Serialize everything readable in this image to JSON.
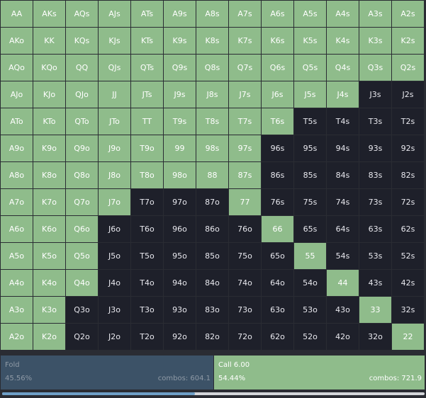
{
  "colors": {
    "call": "#8fbc8b",
    "fold": "#1e202a",
    "fold_summary": "#3c5267",
    "progress": "#6e9fc7"
  },
  "grid": {
    "rows": [
      [
        {
          "hand": "AA",
          "action": "call"
        },
        {
          "hand": "AKs",
          "action": "call"
        },
        {
          "hand": "AQs",
          "action": "call"
        },
        {
          "hand": "AJs",
          "action": "call"
        },
        {
          "hand": "ATs",
          "action": "call"
        },
        {
          "hand": "A9s",
          "action": "call"
        },
        {
          "hand": "A8s",
          "action": "call"
        },
        {
          "hand": "A7s",
          "action": "call"
        },
        {
          "hand": "A6s",
          "action": "call"
        },
        {
          "hand": "A5s",
          "action": "call"
        },
        {
          "hand": "A4s",
          "action": "call"
        },
        {
          "hand": "A3s",
          "action": "call"
        },
        {
          "hand": "A2s",
          "action": "call"
        }
      ],
      [
        {
          "hand": "AKo",
          "action": "call"
        },
        {
          "hand": "KK",
          "action": "call"
        },
        {
          "hand": "KQs",
          "action": "call"
        },
        {
          "hand": "KJs",
          "action": "call"
        },
        {
          "hand": "KTs",
          "action": "call"
        },
        {
          "hand": "K9s",
          "action": "call"
        },
        {
          "hand": "K8s",
          "action": "call"
        },
        {
          "hand": "K7s",
          "action": "call"
        },
        {
          "hand": "K6s",
          "action": "call"
        },
        {
          "hand": "K5s",
          "action": "call"
        },
        {
          "hand": "K4s",
          "action": "call"
        },
        {
          "hand": "K3s",
          "action": "call"
        },
        {
          "hand": "K2s",
          "action": "call"
        }
      ],
      [
        {
          "hand": "AQo",
          "action": "call"
        },
        {
          "hand": "KQo",
          "action": "call"
        },
        {
          "hand": "QQ",
          "action": "call"
        },
        {
          "hand": "QJs",
          "action": "call"
        },
        {
          "hand": "QTs",
          "action": "call"
        },
        {
          "hand": "Q9s",
          "action": "call"
        },
        {
          "hand": "Q8s",
          "action": "call"
        },
        {
          "hand": "Q7s",
          "action": "call"
        },
        {
          "hand": "Q6s",
          "action": "call"
        },
        {
          "hand": "Q5s",
          "action": "call"
        },
        {
          "hand": "Q4s",
          "action": "call"
        },
        {
          "hand": "Q3s",
          "action": "call"
        },
        {
          "hand": "Q2s",
          "action": "call"
        }
      ],
      [
        {
          "hand": "AJo",
          "action": "call"
        },
        {
          "hand": "KJo",
          "action": "call"
        },
        {
          "hand": "QJo",
          "action": "call"
        },
        {
          "hand": "JJ",
          "action": "call"
        },
        {
          "hand": "JTs",
          "action": "call"
        },
        {
          "hand": "J9s",
          "action": "call"
        },
        {
          "hand": "J8s",
          "action": "call"
        },
        {
          "hand": "J7s",
          "action": "call"
        },
        {
          "hand": "J6s",
          "action": "call"
        },
        {
          "hand": "J5s",
          "action": "call"
        },
        {
          "hand": "J4s",
          "action": "call"
        },
        {
          "hand": "J3s",
          "action": "fold"
        },
        {
          "hand": "J2s",
          "action": "fold"
        }
      ],
      [
        {
          "hand": "ATo",
          "action": "call"
        },
        {
          "hand": "KTo",
          "action": "call"
        },
        {
          "hand": "QTo",
          "action": "call"
        },
        {
          "hand": "JTo",
          "action": "call"
        },
        {
          "hand": "TT",
          "action": "call"
        },
        {
          "hand": "T9s",
          "action": "call"
        },
        {
          "hand": "T8s",
          "action": "call"
        },
        {
          "hand": "T7s",
          "action": "call"
        },
        {
          "hand": "T6s",
          "action": "call"
        },
        {
          "hand": "T5s",
          "action": "fold"
        },
        {
          "hand": "T4s",
          "action": "fold"
        },
        {
          "hand": "T3s",
          "action": "fold"
        },
        {
          "hand": "T2s",
          "action": "fold"
        }
      ],
      [
        {
          "hand": "A9o",
          "action": "call"
        },
        {
          "hand": "K9o",
          "action": "call"
        },
        {
          "hand": "Q9o",
          "action": "call"
        },
        {
          "hand": "J9o",
          "action": "call"
        },
        {
          "hand": "T9o",
          "action": "call"
        },
        {
          "hand": "99",
          "action": "call"
        },
        {
          "hand": "98s",
          "action": "call"
        },
        {
          "hand": "97s",
          "action": "call"
        },
        {
          "hand": "96s",
          "action": "fold"
        },
        {
          "hand": "95s",
          "action": "fold"
        },
        {
          "hand": "94s",
          "action": "fold"
        },
        {
          "hand": "93s",
          "action": "fold"
        },
        {
          "hand": "92s",
          "action": "fold"
        }
      ],
      [
        {
          "hand": "A8o",
          "action": "call"
        },
        {
          "hand": "K8o",
          "action": "call"
        },
        {
          "hand": "Q8o",
          "action": "call"
        },
        {
          "hand": "J8o",
          "action": "call"
        },
        {
          "hand": "T8o",
          "action": "call"
        },
        {
          "hand": "98o",
          "action": "call"
        },
        {
          "hand": "88",
          "action": "call"
        },
        {
          "hand": "87s",
          "action": "call"
        },
        {
          "hand": "86s",
          "action": "fold"
        },
        {
          "hand": "85s",
          "action": "fold"
        },
        {
          "hand": "84s",
          "action": "fold"
        },
        {
          "hand": "83s",
          "action": "fold"
        },
        {
          "hand": "82s",
          "action": "fold"
        }
      ],
      [
        {
          "hand": "A7o",
          "action": "call"
        },
        {
          "hand": "K7o",
          "action": "call"
        },
        {
          "hand": "Q7o",
          "action": "call"
        },
        {
          "hand": "J7o",
          "action": "call"
        },
        {
          "hand": "T7o",
          "action": "fold"
        },
        {
          "hand": "97o",
          "action": "fold"
        },
        {
          "hand": "87o",
          "action": "fold"
        },
        {
          "hand": "77",
          "action": "call"
        },
        {
          "hand": "76s",
          "action": "fold"
        },
        {
          "hand": "75s",
          "action": "fold"
        },
        {
          "hand": "74s",
          "action": "fold"
        },
        {
          "hand": "73s",
          "action": "fold"
        },
        {
          "hand": "72s",
          "action": "fold"
        }
      ],
      [
        {
          "hand": "A6o",
          "action": "call"
        },
        {
          "hand": "K6o",
          "action": "call"
        },
        {
          "hand": "Q6o",
          "action": "call"
        },
        {
          "hand": "J6o",
          "action": "fold"
        },
        {
          "hand": "T6o",
          "action": "fold"
        },
        {
          "hand": "96o",
          "action": "fold"
        },
        {
          "hand": "86o",
          "action": "fold"
        },
        {
          "hand": "76o",
          "action": "fold"
        },
        {
          "hand": "66",
          "action": "call"
        },
        {
          "hand": "65s",
          "action": "fold"
        },
        {
          "hand": "64s",
          "action": "fold"
        },
        {
          "hand": "63s",
          "action": "fold"
        },
        {
          "hand": "62s",
          "action": "fold"
        }
      ],
      [
        {
          "hand": "A5o",
          "action": "call"
        },
        {
          "hand": "K5o",
          "action": "call"
        },
        {
          "hand": "Q5o",
          "action": "call"
        },
        {
          "hand": "J5o",
          "action": "fold"
        },
        {
          "hand": "T5o",
          "action": "fold"
        },
        {
          "hand": "95o",
          "action": "fold"
        },
        {
          "hand": "85o",
          "action": "fold"
        },
        {
          "hand": "75o",
          "action": "fold"
        },
        {
          "hand": "65o",
          "action": "fold"
        },
        {
          "hand": "55",
          "action": "call"
        },
        {
          "hand": "54s",
          "action": "fold"
        },
        {
          "hand": "53s",
          "action": "fold"
        },
        {
          "hand": "52s",
          "action": "fold"
        }
      ],
      [
        {
          "hand": "A4o",
          "action": "call"
        },
        {
          "hand": "K4o",
          "action": "call"
        },
        {
          "hand": "Q4o",
          "action": "call"
        },
        {
          "hand": "J4o",
          "action": "fold"
        },
        {
          "hand": "T4o",
          "action": "fold"
        },
        {
          "hand": "94o",
          "action": "fold"
        },
        {
          "hand": "84o",
          "action": "fold"
        },
        {
          "hand": "74o",
          "action": "fold"
        },
        {
          "hand": "64o",
          "action": "fold"
        },
        {
          "hand": "54o",
          "action": "fold"
        },
        {
          "hand": "44",
          "action": "call"
        },
        {
          "hand": "43s",
          "action": "fold"
        },
        {
          "hand": "42s",
          "action": "fold"
        }
      ],
      [
        {
          "hand": "A3o",
          "action": "call"
        },
        {
          "hand": "K3o",
          "action": "call"
        },
        {
          "hand": "Q3o",
          "action": "fold"
        },
        {
          "hand": "J3o",
          "action": "fold"
        },
        {
          "hand": "T3o",
          "action": "fold"
        },
        {
          "hand": "93o",
          "action": "fold"
        },
        {
          "hand": "83o",
          "action": "fold"
        },
        {
          "hand": "73o",
          "action": "fold"
        },
        {
          "hand": "63o",
          "action": "fold"
        },
        {
          "hand": "53o",
          "action": "fold"
        },
        {
          "hand": "43o",
          "action": "fold"
        },
        {
          "hand": "33",
          "action": "call"
        },
        {
          "hand": "32s",
          "action": "fold"
        }
      ],
      [
        {
          "hand": "A2o",
          "action": "call"
        },
        {
          "hand": "K2o",
          "action": "call"
        },
        {
          "hand": "Q2o",
          "action": "fold"
        },
        {
          "hand": "J2o",
          "action": "fold"
        },
        {
          "hand": "T2o",
          "action": "fold"
        },
        {
          "hand": "92o",
          "action": "fold"
        },
        {
          "hand": "82o",
          "action": "fold"
        },
        {
          "hand": "72o",
          "action": "fold"
        },
        {
          "hand": "62o",
          "action": "fold"
        },
        {
          "hand": "52o",
          "action": "fold"
        },
        {
          "hand": "42o",
          "action": "fold"
        },
        {
          "hand": "32o",
          "action": "fold"
        },
        {
          "hand": "22",
          "action": "call"
        }
      ]
    ]
  },
  "summary": {
    "fold": {
      "label": "Fold",
      "percent": "45.56%",
      "combos": "combos: 604.1"
    },
    "call": {
      "label": "Call 6.00",
      "percent": "54.44%",
      "combos": "combos: 721.9"
    }
  },
  "progress": {
    "fraction": 0.4556
  }
}
